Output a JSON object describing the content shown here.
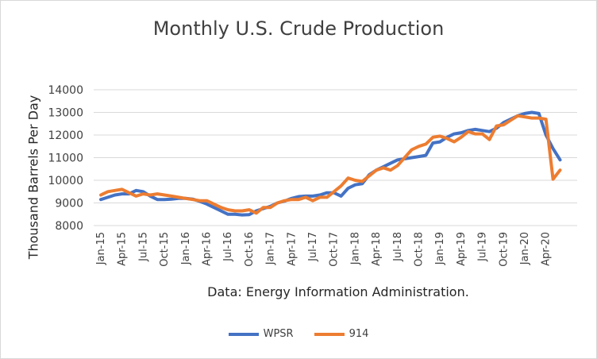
{
  "chart_data": {
    "type": "line",
    "title": "Monthly U.S. Crude Production",
    "ylabel": "Thousand Barrels Per Day",
    "xlabel": "Data: Energy Information Administration.",
    "ylim": [
      8000,
      14000
    ],
    "yticks": [
      "14000",
      "13000",
      "12000",
      "11000",
      "10000",
      "9000",
      "8000"
    ],
    "grid": true,
    "legend": "bottom",
    "x": [
      "Jan-15",
      "Feb-15",
      "Mar-15",
      "Apr-15",
      "May-15",
      "Jun-15",
      "Jul-15",
      "Aug-15",
      "Sep-15",
      "Oct-15",
      "Nov-15",
      "Dec-15",
      "Jan-16",
      "Feb-16",
      "Mar-16",
      "Apr-16",
      "May-16",
      "Jun-16",
      "Jul-16",
      "Aug-16",
      "Sep-16",
      "Oct-16",
      "Nov-16",
      "Dec-16",
      "Jan-17",
      "Feb-17",
      "Mar-17",
      "Apr-17",
      "May-17",
      "Jun-17",
      "Jul-17",
      "Aug-17",
      "Sep-17",
      "Oct-17",
      "Nov-17",
      "Dec-17",
      "Jan-18",
      "Feb-18",
      "Mar-18",
      "Apr-18",
      "May-18",
      "Jun-18",
      "Jul-18",
      "Aug-18",
      "Sep-18",
      "Oct-18",
      "Nov-18",
      "Dec-18",
      "Jan-19",
      "Feb-19",
      "Mar-19",
      "Apr-19",
      "May-19",
      "Jun-19",
      "Jul-19",
      "Aug-19",
      "Sep-19",
      "Oct-19",
      "Nov-19",
      "Dec-19",
      "Jan-20",
      "Feb-20",
      "Mar-20",
      "Apr-20",
      "May-20",
      "Jun-20"
    ],
    "xtick_labels": [
      "Jan-15",
      "Apr-15",
      "Jul-15",
      "Oct-15",
      "Jan-16",
      "Apr-16",
      "Jul-16",
      "Oct-16",
      "Jan-17",
      "Apr-17",
      "Jul-17",
      "Oct-17",
      "Jan-18",
      "Apr-18",
      "Jul-18",
      "Oct-18",
      "Jan-19",
      "Apr-19",
      "Jul-19",
      "Oct-19",
      "Jan-20",
      "Apr-20"
    ],
    "series": [
      {
        "name": "WPSR",
        "color": "#4472c4",
        "values": [
          9150,
          9250,
          9350,
          9400,
          9400,
          9550,
          9500,
          9300,
          9150,
          9150,
          9170,
          9200,
          9200,
          9170,
          9070,
          8950,
          8800,
          8650,
          8500,
          8500,
          8470,
          8480,
          8650,
          8750,
          8850,
          9000,
          9080,
          9200,
          9280,
          9300,
          9300,
          9350,
          9450,
          9450,
          9300,
          9650,
          9800,
          9850,
          10250,
          10450,
          10600,
          10750,
          10900,
          10950,
          11000,
          11050,
          11100,
          11650,
          11700,
          11900,
          12050,
          12100,
          12200,
          12250,
          12200,
          12150,
          12300,
          12550,
          12700,
          12850,
          12950,
          13000,
          12950,
          12000,
          11400,
          10900
        ]
      },
      {
        "name": "914",
        "color": "#ed7d31",
        "values": [
          9350,
          9500,
          9550,
          9600,
          9450,
          9300,
          9400,
          9350,
          9400,
          9350,
          9300,
          9250,
          9200,
          9150,
          9100,
          9100,
          8950,
          8800,
          8700,
          8650,
          8650,
          8700,
          8550,
          8800,
          8800,
          9000,
          9100,
          9150,
          9150,
          9250,
          9100,
          9250,
          9250,
          9500,
          9750,
          10100,
          10000,
          9950,
          10200,
          10450,
          10550,
          10450,
          10650,
          11000,
          11350,
          11500,
          11600,
          11900,
          11950,
          11850,
          11700,
          11900,
          12150,
          12050,
          12050,
          11800,
          12400,
          12450,
          12650,
          12850,
          12800,
          12750,
          12750,
          12700,
          10050,
          10450
        ]
      }
    ]
  }
}
